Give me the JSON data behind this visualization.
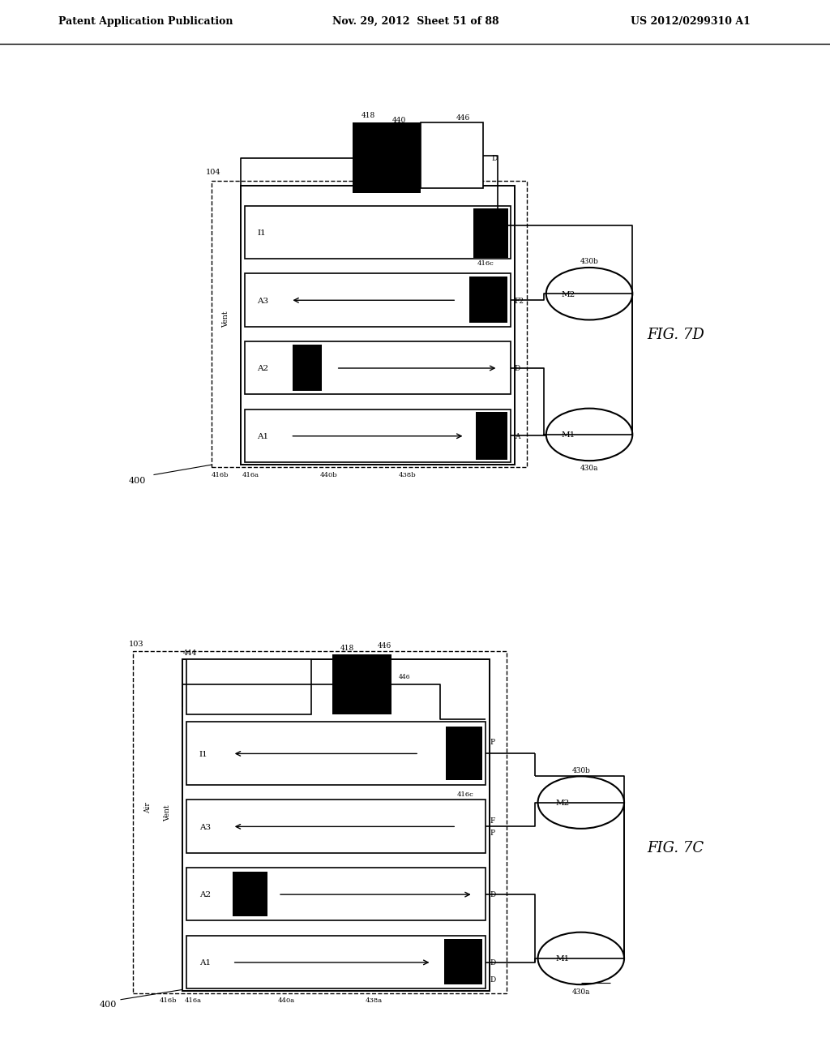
{
  "bg_color": "#ffffff",
  "header_left": "Patent Application Publication",
  "header_mid": "Nov. 29, 2012  Sheet 51 of 88",
  "header_right": "US 2012/0299310 A1",
  "fig_label_top": "FIG. 7D",
  "fig_label_bot": "FIG. 7C"
}
